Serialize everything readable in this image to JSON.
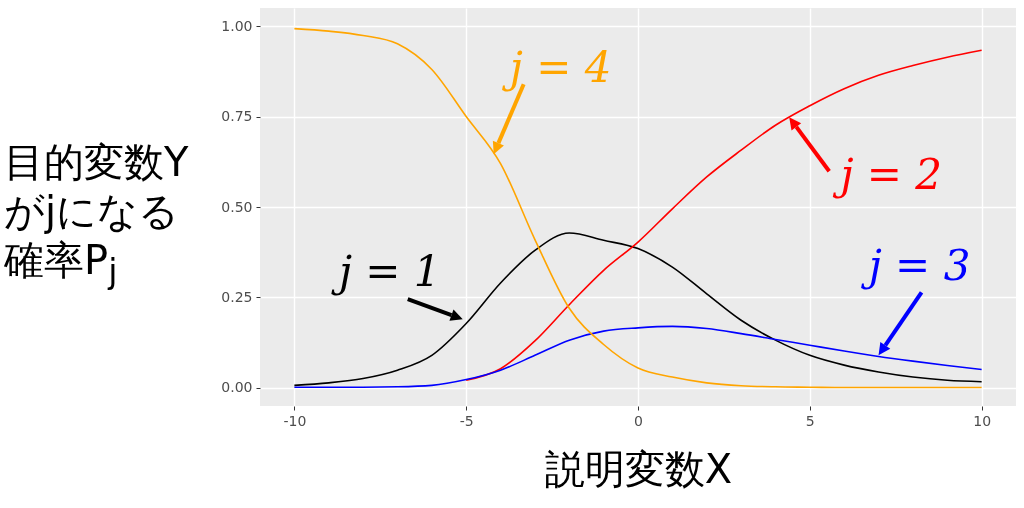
{
  "chart_data": {
    "type": "line",
    "xlabel": "説明変数X",
    "ylabel": "目的変数Yがjになる確率P$_{j}$",
    "x": [
      -10,
      -9,
      -8,
      -7,
      -6,
      -5,
      -4,
      -3,
      -2,
      -1,
      0,
      1,
      2,
      3,
      4,
      5,
      6,
      7,
      8,
      9,
      10
    ],
    "series": [
      {
        "color": "#000000",
        "values": [
          0.007,
          0.014,
          0.026,
          0.049,
          0.09,
          0.178,
          0.29,
          0.38,
          0.428,
          0.408,
          0.385,
          0.334,
          0.26,
          0.187,
          0.132,
          0.09,
          0.063,
          0.044,
          0.03,
          0.021,
          0.017
        ]
      },
      {
        "color": "#ff0000",
        "values": [
          null,
          null,
          null,
          null,
          null,
          0.021,
          0.053,
          0.13,
          0.23,
          0.325,
          0.403,
          0.495,
          0.583,
          0.657,
          0.726,
          0.78,
          0.827,
          0.864,
          0.891,
          0.914,
          0.933
        ]
      },
      {
        "color": "#0000ff",
        "values": [
          0.002,
          0.002,
          0.002,
          0.003,
          0.007,
          0.023,
          0.049,
          0.09,
          0.132,
          0.157,
          0.166,
          0.17,
          0.164,
          0.15,
          0.134,
          0.118,
          0.102,
          0.087,
          0.074,
          0.062,
          0.051
        ]
      },
      {
        "color": "#ffa500",
        "values": [
          0.993,
          0.986,
          0.974,
          0.951,
          0.88,
          0.75,
          0.62,
          0.41,
          0.22,
          0.12,
          0.055,
          0.03,
          0.014,
          0.006,
          0.003,
          0.002,
          0.001,
          0.001,
          0.001,
          0.001,
          0.001
        ]
      }
    ],
    "annotations": [
      {
        "text": "j = 1",
        "x": -5.1,
        "y": 0.19
      },
      {
        "text": "j = 2",
        "x": 4.4,
        "y": 0.748
      },
      {
        "text": "j = 3",
        "x": 7.0,
        "y": 0.09
      },
      {
        "text": "j = 4",
        "x": -4.2,
        "y": 0.646
      }
    ],
    "xlim": [
      -11,
      11
    ],
    "ylim": [
      -0.05,
      1.05
    ],
    "xticks": [
      -10,
      -5,
      0,
      5,
      10
    ],
    "yticks": [
      {
        "value": 0,
        "label": "0.00"
      },
      {
        "value": 0.25,
        "label": "0.25"
      },
      {
        "value": 0.5,
        "label": "0.50"
      },
      {
        "value": 0.75,
        "label": "0.75"
      },
      {
        "value": 1,
        "label": "1.00"
      }
    ],
    "grid": true,
    "line_style": "solid"
  }
}
